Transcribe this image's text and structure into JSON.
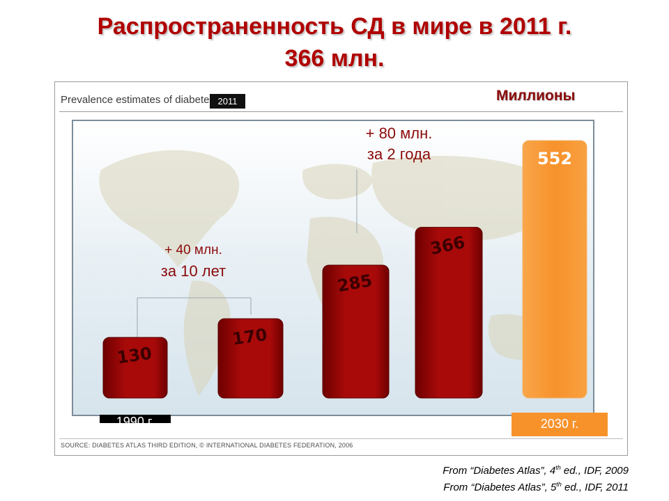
{
  "title": {
    "line1": "Распространенность СД в мире в 2011 г.",
    "line2": "366 млн."
  },
  "panel": {
    "header": "Prevalence estimates of diabetes",
    "year_badge": "2011",
    "units_label": "Миллионы",
    "source": "SOURCE: DIABETES ATLAS THIRD EDITION, © INTERNATIONAL DIABETES FEDERATION, 2006"
  },
  "annotations": {
    "first": {
      "amount": "+ 40 млн.",
      "period": "за 10 лет"
    },
    "second": {
      "amount": "+ 80 млн.",
      "period": "за 2 года"
    }
  },
  "years": {
    "first": "1990 г.",
    "last": "2030 г."
  },
  "footnotes": {
    "note1_prefix": "From “Diabetes Atlas”, 4",
    "note1_sup": "th",
    "note1_suffix": " ed., IDF, 2009",
    "note2_prefix": "From “Diabetes Atlas”, 5",
    "note2_sup": "th",
    "note2_suffix": " ed., IDF, 2011"
  },
  "colors": {
    "title": "#b00000",
    "bar": "#a80a0a",
    "bar_dark": "#6e0000",
    "highlight": "#f7922b",
    "annotation": "#8b0a0a"
  },
  "chart_data": {
    "type": "bar",
    "categories": [
      "",
      "",
      "",
      "",
      ""
    ],
    "values": [
      130,
      170,
      285,
      366,
      552
    ],
    "labels": [
      "130",
      "170",
      "285",
      "366",
      "552"
    ],
    "highlight_index": 4,
    "ylim": [
      0,
      600
    ],
    "grid": false,
    "xlabel": "",
    "ylabel": ""
  }
}
